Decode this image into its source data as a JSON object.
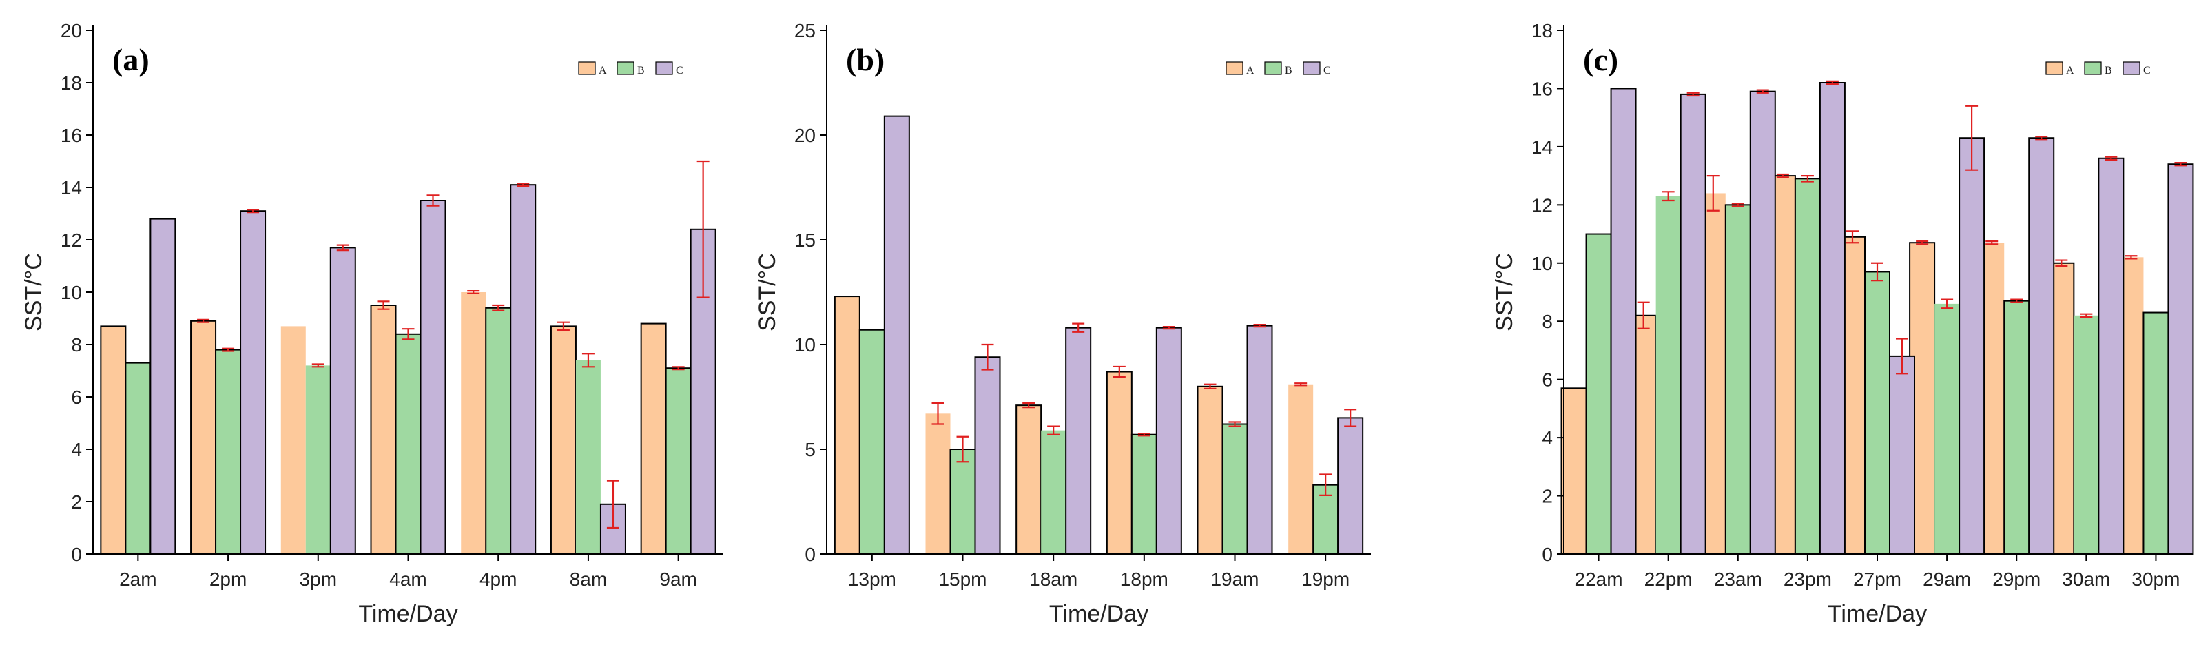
{
  "colors": {
    "A": "#FDC99B",
    "B": "#9FD9A1",
    "C": "#C4B4D9",
    "error": "#E02020",
    "outline": "#000000"
  },
  "chart_data": [
    {
      "type": "bar",
      "panel_label": "(a)",
      "xlabel": "Time/Day",
      "ylabel": "SST/°C",
      "ylim": [
        0,
        20
      ],
      "yticks": [
        0,
        2,
        4,
        6,
        8,
        10,
        12,
        14,
        16,
        18,
        20
      ],
      "legend_position": "top-right",
      "categories": [
        "2am",
        "2pm",
        "3pm",
        "4am",
        "4pm",
        "8am",
        "9am"
      ],
      "series": [
        {
          "name": "A",
          "values": [
            8.7,
            8.9,
            8.7,
            9.5,
            10.0,
            8.7,
            8.8
          ],
          "errors": [
            0,
            0.05,
            0,
            0.15,
            0.05,
            0.15,
            0
          ]
        },
        {
          "name": "B",
          "values": [
            7.3,
            7.8,
            7.2,
            8.4,
            9.4,
            7.4,
            7.1
          ],
          "errors": [
            0,
            0.05,
            0.05,
            0.2,
            0.1,
            0.25,
            0.05
          ]
        },
        {
          "name": "C",
          "values": [
            12.8,
            13.1,
            11.7,
            13.5,
            14.1,
            1.9,
            12.4
          ],
          "errors": [
            0,
            0.05,
            0.1,
            0.2,
            0.05,
            0.9,
            2.6
          ]
        }
      ],
      "outlined": [
        [
          true,
          true,
          false,
          true,
          false,
          true,
          true
        ],
        [
          true,
          true,
          false,
          true,
          true,
          false,
          true
        ],
        [
          true,
          true,
          true,
          true,
          true,
          true,
          true
        ]
      ]
    },
    {
      "type": "bar",
      "panel_label": "(b)",
      "xlabel": "Time/Day",
      "ylabel": "SST/°C",
      "ylim": [
        0,
        25
      ],
      "yticks": [
        0,
        5,
        10,
        15,
        20,
        25
      ],
      "legend_position": "top-right",
      "categories": [
        "13pm",
        "15pm",
        "18am",
        "18pm",
        "19am",
        "19pm"
      ],
      "series": [
        {
          "name": "A",
          "values": [
            12.3,
            6.7,
            7.1,
            8.7,
            8.0,
            8.1
          ],
          "errors": [
            0,
            0.5,
            0.1,
            0.25,
            0.1,
            0.05
          ]
        },
        {
          "name": "B",
          "values": [
            10.7,
            5.0,
            5.9,
            5.7,
            6.2,
            3.3
          ],
          "errors": [
            0,
            0.6,
            0.2,
            0.05,
            0.1,
            0.5
          ]
        },
        {
          "name": "C",
          "values": [
            20.9,
            9.4,
            10.8,
            10.8,
            10.9,
            6.5
          ],
          "errors": [
            0,
            0.6,
            0.2,
            0.05,
            0.05,
            0.4
          ]
        }
      ],
      "outlined": [
        [
          true,
          false,
          true,
          true,
          true,
          false
        ],
        [
          true,
          true,
          false,
          true,
          true,
          true
        ],
        [
          true,
          true,
          true,
          true,
          true,
          true
        ]
      ]
    },
    {
      "type": "bar",
      "panel_label": "(c)",
      "xlabel": "Time/Day",
      "ylabel": "SST/°C",
      "ylim": [
        0,
        18
      ],
      "yticks": [
        0,
        2,
        4,
        6,
        8,
        10,
        12,
        14,
        16,
        18
      ],
      "legend_position": "top-right",
      "categories": [
        "22am",
        "22pm",
        "23am",
        "23pm",
        "27pm",
        "29am",
        "29pm",
        "30am",
        "30pm"
      ],
      "series": [
        {
          "name": "A",
          "values": [
            5.7,
            8.2,
            12.4,
            13.0,
            10.9,
            10.7,
            10.7,
            10.0,
            10.2
          ],
          "errors": [
            0,
            0.45,
            0.6,
            0.05,
            0.2,
            0.05,
            0.05,
            0.1,
            0.05
          ]
        },
        {
          "name": "B",
          "values": [
            11.0,
            12.3,
            12.0,
            12.9,
            9.7,
            8.6,
            8.7,
            8.2,
            8.3
          ],
          "errors": [
            0,
            0.15,
            0.05,
            0.1,
            0.3,
            0.15,
            0.05,
            0.05,
            0
          ]
        },
        {
          "name": "C",
          "values": [
            16.0,
            15.8,
            15.9,
            16.2,
            6.8,
            14.3,
            14.3,
            13.6,
            13.4
          ],
          "errors": [
            0,
            0.05,
            0.05,
            0.05,
            0.6,
            1.1,
            0.05,
            0.05,
            0.05
          ]
        }
      ],
      "outlined": [
        [
          true,
          true,
          false,
          true,
          true,
          true,
          false,
          true,
          false
        ],
        [
          true,
          false,
          true,
          true,
          true,
          false,
          true,
          false,
          true
        ],
        [
          true,
          true,
          true,
          true,
          true,
          true,
          true,
          true,
          true
        ]
      ]
    }
  ]
}
